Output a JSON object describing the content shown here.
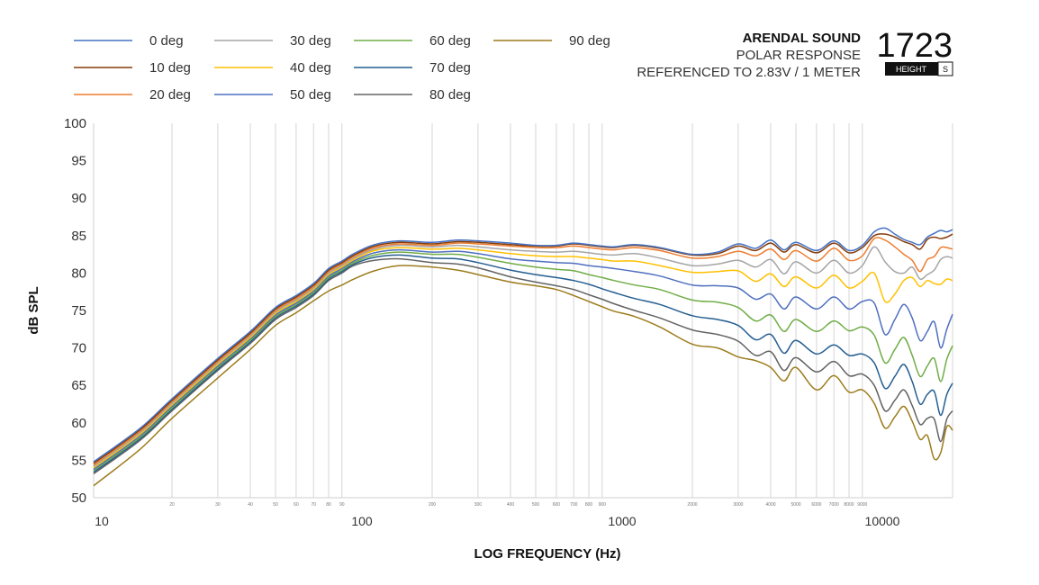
{
  "header": {
    "brand": "ARENDAL SOUND",
    "subtitle": "POLAR RESPONSE",
    "reference": "REFERENCED TO 2.83V / 1 METER",
    "model": "1723",
    "badge_left": "HEIGHT",
    "badge_right": "S"
  },
  "chart_data": {
    "type": "line",
    "xlabel": "LOG FREQUENCY (Hz)",
    "ylabel": "dB SPL",
    "xscale": "log",
    "xlim": [
      10,
      20000
    ],
    "ylim": [
      50,
      100
    ],
    "yticks": [
      50,
      55,
      60,
      65,
      70,
      75,
      80,
      85,
      90,
      95,
      100
    ],
    "xticks_major": [
      {
        "value": 10,
        "label": "10"
      },
      {
        "value": 100,
        "label": "100"
      },
      {
        "value": 1000,
        "label": "1000"
      },
      {
        "value": 10000,
        "label": "10000"
      }
    ],
    "xticks_minor": [
      {
        "value": 20,
        "label": "20"
      },
      {
        "value": 30,
        "label": "30"
      },
      {
        "value": 40,
        "label": "40"
      },
      {
        "value": 50,
        "label": "50"
      },
      {
        "value": 60,
        "label": "60"
      },
      {
        "value": 70,
        "label": "70"
      },
      {
        "value": 80,
        "label": "80"
      },
      {
        "value": 90,
        "label": "90"
      },
      {
        "value": 200,
        "label": "200"
      },
      {
        "value": 300,
        "label": "300"
      },
      {
        "value": 400,
        "label": "400"
      },
      {
        "value": 500,
        "label": "500"
      },
      {
        "value": 600,
        "label": "600"
      },
      {
        "value": 700,
        "label": "700"
      },
      {
        "value": 800,
        "label": "800"
      },
      {
        "value": 900,
        "label": "900"
      },
      {
        "value": 2000,
        "label": "2000"
      },
      {
        "value": 3000,
        "label": "3000"
      },
      {
        "value": 4000,
        "label": "4000"
      },
      {
        "value": 5000,
        "label": "5000"
      },
      {
        "value": 6000,
        "label": "6000"
      },
      {
        "value": 7000,
        "label": "7000"
      },
      {
        "value": 8000,
        "label": "8000"
      },
      {
        "value": 9000,
        "label": "9000"
      },
      {
        "value": 20000,
        "label": ""
      }
    ],
    "grid": "vertical",
    "legend_position": "top-left",
    "x": [
      10,
      15,
      20,
      30,
      40,
      50,
      60,
      70,
      80,
      90,
      100,
      120,
      150,
      200,
      250,
      300,
      400,
      500,
      600,
      700,
      800,
      900,
      1000,
      1200,
      1500,
      2000,
      2500,
      3000,
      3500,
      4000,
      4500,
      5000,
      6000,
      7000,
      8000,
      9000,
      10000,
      11000,
      12000,
      13000,
      14000,
      15000,
      16000,
      17000,
      18000,
      19000,
      20000
    ],
    "series": [
      {
        "name": "0 deg",
        "color": "#4472c4",
        "values": [
          54.8,
          59.2,
          63.2,
          68.6,
          72.2,
          75.4,
          77.0,
          78.6,
          80.6,
          81.6,
          82.6,
          83.8,
          84.3,
          84.1,
          84.4,
          84.3,
          84.0,
          83.7,
          83.7,
          84.0,
          83.8,
          83.6,
          83.5,
          83.8,
          83.4,
          82.5,
          82.8,
          83.9,
          83.3,
          84.4,
          83.1,
          84.1,
          83.0,
          84.3,
          83.0,
          83.7,
          85.5,
          86.0,
          85.2,
          84.5,
          84.1,
          83.8,
          84.8,
          85.3,
          85.7,
          85.5,
          85.8
        ]
      },
      {
        "name": "10 deg",
        "color": "#843c0c",
        "values": [
          54.6,
          59.0,
          63.0,
          68.4,
          72.0,
          75.2,
          76.8,
          78.4,
          80.4,
          81.4,
          82.4,
          83.6,
          84.1,
          83.9,
          84.2,
          84.1,
          83.8,
          83.6,
          83.6,
          83.9,
          83.7,
          83.5,
          83.4,
          83.7,
          83.3,
          82.4,
          82.6,
          83.6,
          83.0,
          84.0,
          82.8,
          83.8,
          82.7,
          84.0,
          82.7,
          83.4,
          85.0,
          85.2,
          84.8,
          84.2,
          83.8,
          83.2,
          84.5,
          84.8,
          84.6,
          84.8,
          85.2
        ]
      },
      {
        "name": "20 deg",
        "color": "#ed7d31",
        "values": [
          54.4,
          58.8,
          62.8,
          68.2,
          71.8,
          75.0,
          76.6,
          78.2,
          80.2,
          81.2,
          82.2,
          83.4,
          83.9,
          83.7,
          84.0,
          83.9,
          83.6,
          83.4,
          83.4,
          83.6,
          83.4,
          83.2,
          83.1,
          83.4,
          83.0,
          82.0,
          82.2,
          82.9,
          82.3,
          83.2,
          81.8,
          83.0,
          81.6,
          83.3,
          81.7,
          82.3,
          84.6,
          84.4,
          83.5,
          82.5,
          81.7,
          80.2,
          81.8,
          82.2,
          83.4,
          83.4,
          83.2
        ]
      },
      {
        "name": "30 deg",
        "color": "#a5a5a5",
        "values": [
          54.2,
          58.6,
          62.6,
          68.0,
          71.6,
          74.8,
          76.4,
          78.0,
          80.0,
          81.0,
          82.0,
          83.2,
          83.7,
          83.5,
          83.7,
          83.5,
          83.1,
          82.9,
          82.8,
          82.9,
          82.7,
          82.5,
          82.4,
          82.6,
          82.0,
          81.0,
          81.2,
          81.7,
          80.8,
          81.8,
          79.9,
          81.5,
          80.0,
          81.7,
          80.0,
          81.0,
          83.5,
          81.5,
          80.2,
          80.0,
          80.8,
          79.2,
          79.8,
          80.4,
          81.8,
          82.2,
          82.0
        ]
      },
      {
        "name": "40 deg",
        "color": "#ffc000",
        "values": [
          54.0,
          58.4,
          62.4,
          67.8,
          71.4,
          74.6,
          76.2,
          77.8,
          79.8,
          80.8,
          81.8,
          83.0,
          83.4,
          83.2,
          83.3,
          83.1,
          82.6,
          82.3,
          82.2,
          82.2,
          82.0,
          81.8,
          81.6,
          81.6,
          81.0,
          80.1,
          80.2,
          80.3,
          78.9,
          79.9,
          78.2,
          79.5,
          78.0,
          79.7,
          78.0,
          78.9,
          80.0,
          76.2,
          77.2,
          79.0,
          79.4,
          78.2,
          79.0,
          78.6,
          78.5,
          79.2,
          79.0
        ]
      },
      {
        "name": "50 deg",
        "color": "#4f6fbf",
        "values": [
          53.8,
          58.2,
          62.2,
          67.6,
          71.2,
          74.4,
          76.0,
          77.6,
          79.6,
          80.6,
          81.6,
          82.7,
          83.1,
          82.8,
          82.9,
          82.6,
          81.9,
          81.6,
          81.4,
          81.3,
          81.0,
          80.8,
          80.6,
          80.2,
          79.6,
          78.4,
          78.3,
          78.0,
          76.5,
          77.2,
          75.2,
          76.8,
          75.2,
          76.8,
          75.2,
          76.2,
          76.0,
          71.8,
          73.8,
          75.8,
          74.0,
          71.0,
          72.2,
          73.5,
          70.0,
          72.5,
          74.5
        ]
      },
      {
        "name": "60 deg",
        "color": "#70ad47",
        "values": [
          53.6,
          58.0,
          62.0,
          67.4,
          71.0,
          74.2,
          75.8,
          77.4,
          79.4,
          80.4,
          81.4,
          82.4,
          82.8,
          82.5,
          82.5,
          82.1,
          81.3,
          80.8,
          80.5,
          80.3,
          79.8,
          79.4,
          79.0,
          78.4,
          77.8,
          76.4,
          76.1,
          75.4,
          73.6,
          74.4,
          72.2,
          73.8,
          72.2,
          73.6,
          72.3,
          72.8,
          71.7,
          68.0,
          69.8,
          71.4,
          69.0,
          66.2,
          67.6,
          68.6,
          65.5,
          68.5,
          70.3
        ]
      },
      {
        "name": "70 deg",
        "color": "#255e91",
        "values": [
          53.4,
          57.8,
          61.8,
          67.2,
          70.8,
          74.0,
          75.6,
          77.2,
          79.2,
          80.2,
          81.2,
          82.1,
          82.4,
          82.0,
          81.9,
          81.4,
          80.4,
          79.8,
          79.4,
          79.0,
          78.5,
          77.9,
          77.4,
          76.6,
          75.8,
          74.3,
          73.8,
          73.0,
          71.1,
          71.8,
          69.3,
          71.0,
          69.2,
          70.4,
          69.0,
          69.2,
          68.0,
          64.6,
          66.2,
          67.8,
          65.5,
          62.5,
          63.8,
          64.2,
          61.0,
          63.8,
          65.3
        ]
      },
      {
        "name": "80 deg",
        "color": "#636363",
        "values": [
          53.2,
          57.6,
          61.6,
          67.0,
          70.6,
          73.8,
          75.4,
          77.0,
          79.0,
          80.0,
          81.0,
          81.7,
          81.9,
          81.4,
          81.2,
          80.7,
          79.5,
          78.8,
          78.3,
          77.8,
          77.1,
          76.5,
          75.9,
          75.0,
          74.0,
          72.4,
          71.8,
          70.9,
          69.0,
          69.5,
          67.0,
          68.7,
          66.8,
          68.2,
          66.3,
          66.5,
          65.0,
          61.6,
          63.0,
          64.4,
          62.3,
          59.8,
          60.6,
          60.5,
          57.5,
          60.5,
          61.6
        ]
      },
      {
        "name": "90 deg",
        "color": "#9c7c1c",
        "values": [
          51.6,
          56.4,
          60.6,
          66.0,
          69.8,
          73.0,
          74.7,
          76.3,
          77.6,
          78.4,
          79.2,
          80.3,
          81.0,
          80.8,
          80.4,
          79.8,
          78.8,
          78.3,
          77.8,
          77.0,
          76.2,
          75.5,
          74.9,
          74.2,
          72.8,
          70.5,
          70.0,
          68.8,
          68.3,
          67.4,
          65.6,
          67.4,
          64.4,
          66.3,
          64.1,
          64.4,
          62.6,
          59.3,
          60.8,
          62.2,
          60.2,
          57.8,
          58.3,
          55.2,
          56.0,
          59.5,
          59.0
        ]
      }
    ]
  }
}
